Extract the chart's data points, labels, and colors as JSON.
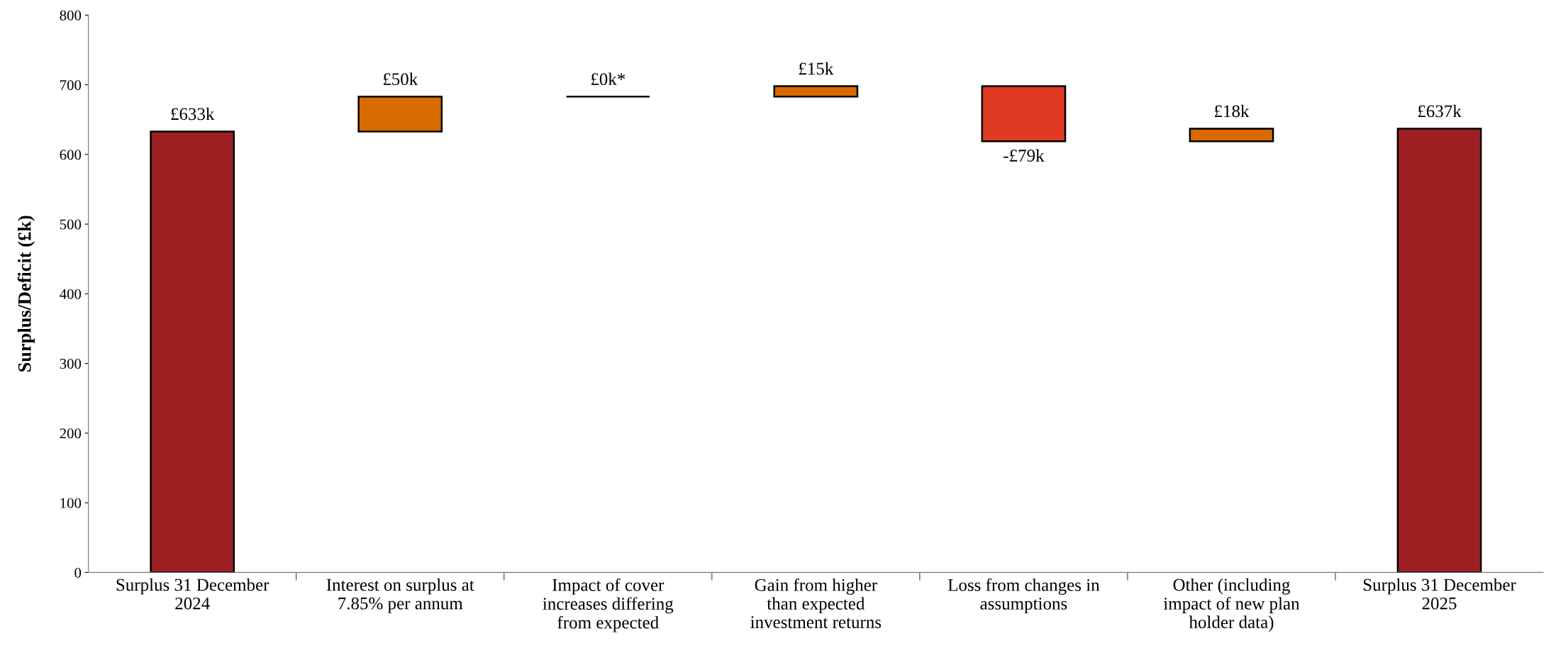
{
  "chart_data": {
    "type": "bar",
    "categories": [
      "Surplus 31 December\n2024",
      "Interest on surplus at\n7.85% per annum",
      "Impact of cover\nincreases differing\nfrom expected",
      "Gain from higher\nthan expected\ninvestment returns",
      "Loss from changes in\nassumptions",
      "Other (including\nimpact of new plan\nholder data)",
      "Surplus 31 December\n2025"
    ],
    "values": [
      633,
      50,
      0,
      15,
      -79,
      18,
      637
    ],
    "base": [
      0,
      633,
      683,
      683,
      698,
      619,
      0
    ],
    "colors": [
      "#9e1f22",
      "#d96a00",
      "#000000",
      "#d96a00",
      "#e03a22",
      "#d96a00",
      "#9e1f22"
    ],
    "value_labels": [
      "£633k",
      "£50k",
      "£0k*",
      "£15k",
      "-£79k",
      "£18k",
      "£637k"
    ],
    "ylabel": "Surplus/Deficit (£k)",
    "ylim": [
      0,
      800
    ],
    "yticks": [
      0,
      100,
      200,
      300,
      400,
      500,
      600,
      700,
      800
    ],
    "grid": false,
    "legend": false
  }
}
